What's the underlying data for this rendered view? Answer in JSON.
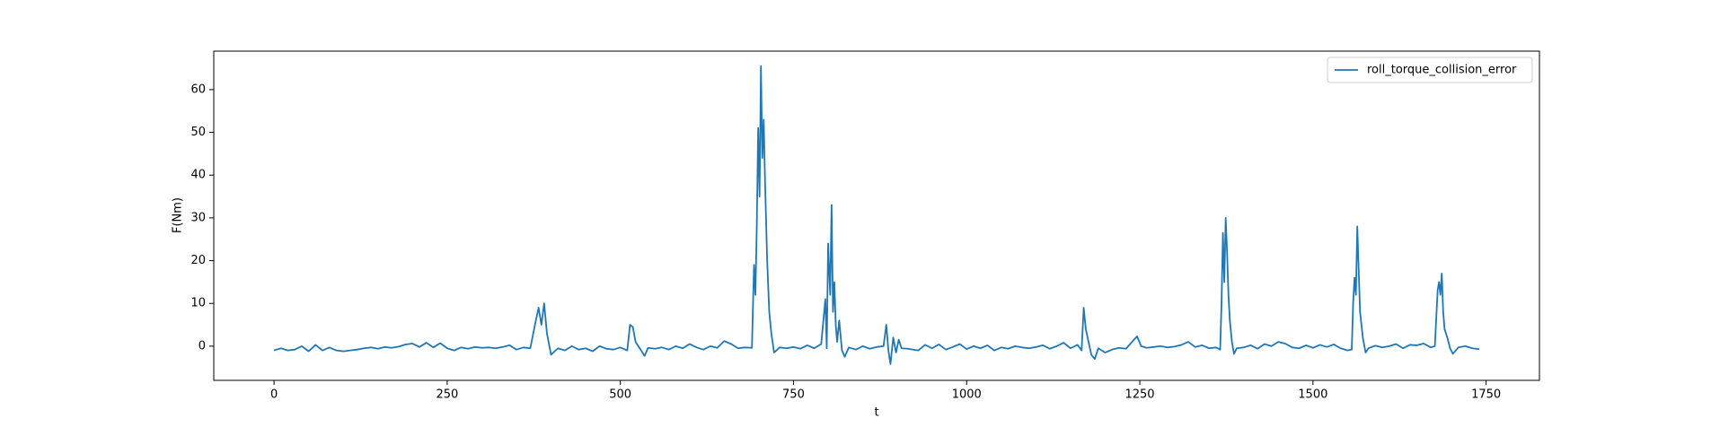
{
  "chart_data": {
    "type": "line",
    "xlabel": "t",
    "ylabel": "F(Nm)",
    "xlim": [
      -87,
      1827
    ],
    "xticks": [
      0,
      250,
      500,
      750,
      1000,
      1250,
      1500,
      1750
    ],
    "ylim": [
      -8,
      69
    ],
    "yticks": [
      0,
      10,
      20,
      30,
      40,
      50,
      60
    ],
    "legend": "upper right",
    "x": [
      0,
      10,
      20,
      30,
      40,
      50,
      60,
      70,
      80,
      90,
      100,
      110,
      120,
      130,
      140,
      150,
      160,
      170,
      180,
      190,
      200,
      210,
      220,
      230,
      240,
      250,
      260,
      270,
      280,
      290,
      300,
      310,
      320,
      330,
      340,
      350,
      360,
      370,
      378,
      382,
      386,
      390,
      394,
      400,
      410,
      420,
      430,
      440,
      450,
      460,
      470,
      480,
      490,
      500,
      510,
      514,
      518,
      522,
      530,
      535,
      540,
      550,
      560,
      570,
      580,
      590,
      600,
      610,
      620,
      630,
      640,
      650,
      660,
      670,
      680,
      690,
      693,
      695,
      697,
      699,
      701,
      703,
      705,
      707,
      709,
      712,
      715,
      718,
      722,
      730,
      740,
      750,
      760,
      770,
      780,
      790,
      796,
      798,
      800,
      803,
      805,
      807,
      809,
      811,
      813,
      816,
      820,
      824,
      830,
      840,
      850,
      860,
      870,
      880,
      884,
      887,
      890,
      894,
      898,
      902,
      906,
      915,
      930,
      940,
      950,
      960,
      970,
      980,
      990,
      1000,
      1010,
      1020,
      1030,
      1040,
      1050,
      1060,
      1070,
      1080,
      1090,
      1100,
      1110,
      1120,
      1130,
      1140,
      1150,
      1160,
      1166,
      1169,
      1172,
      1176,
      1180,
      1185,
      1190,
      1200,
      1210,
      1220,
      1230,
      1240,
      1246,
      1252,
      1260,
      1270,
      1280,
      1290,
      1300,
      1310,
      1320,
      1330,
      1340,
      1350,
      1360,
      1366,
      1368,
      1370,
      1372,
      1374,
      1376,
      1378,
      1380,
      1383,
      1386,
      1390,
      1400,
      1410,
      1420,
      1430,
      1440,
      1450,
      1460,
      1470,
      1480,
      1490,
      1500,
      1510,
      1520,
      1530,
      1540,
      1550,
      1556,
      1558,
      1560,
      1562,
      1564,
      1566,
      1568,
      1572,
      1576,
      1580,
      1590,
      1600,
      1610,
      1620,
      1630,
      1640,
      1650,
      1660,
      1670,
      1676,
      1680,
      1682,
      1684,
      1686,
      1688,
      1690,
      1694,
      1698,
      1702,
      1710,
      1720,
      1730,
      1740
    ],
    "series": [
      {
        "name": "roll_torque_collision_error",
        "color": "#1f77b4",
        "values": [
          -1,
          -0.5,
          -1,
          -0.8,
          0,
          -1.2,
          0.3,
          -1,
          -0.3,
          -1,
          -1.2,
          -1,
          -0.8,
          -0.5,
          -0.3,
          -0.6,
          -0.2,
          -0.4,
          -0.1,
          0.4,
          0.6,
          -0.2,
          0.8,
          -0.3,
          0.7,
          -0.5,
          -1,
          -0.3,
          -0.6,
          -0.2,
          -0.4,
          -0.3,
          -0.5,
          -0.2,
          0.2,
          -0.8,
          -0.3,
          -0.5,
          6,
          9,
          5,
          10,
          3,
          -2,
          -0.5,
          -1,
          0,
          -0.8,
          -0.5,
          -1.2,
          0,
          -0.6,
          -0.8,
          -0.3,
          -1,
          5,
          4.5,
          1,
          -1,
          -2.3,
          -0.4,
          -0.6,
          -0.3,
          -0.8,
          0,
          -0.5,
          0.5,
          -0.3,
          -0.8,
          0,
          -0.4,
          1.2,
          0.5,
          -0.5,
          -0.3,
          -0.4,
          19,
          12,
          28,
          51,
          35,
          65.5,
          44,
          53,
          38,
          20,
          8,
          3,
          -1.5,
          -0.3,
          -0.5,
          -0.2,
          -0.6,
          0.2,
          -0.5,
          0.5,
          11,
          -0.5,
          24,
          12,
          33,
          8,
          15,
          5,
          1,
          6,
          -1,
          -2.5,
          -0.3,
          -0.8,
          0,
          -0.6,
          -0.2,
          0,
          5,
          -1,
          -4.2,
          2,
          -1.5,
          1.5,
          -0.5,
          -0.6,
          -1,
          0.3,
          -0.5,
          0.4,
          -0.8,
          -0.2,
          0.5,
          -0.7,
          0,
          -0.5,
          0.2,
          -1,
          -0.3,
          -0.6,
          0,
          -0.3,
          -0.5,
          -0.2,
          0.2,
          -0.6,
          0,
          0.8,
          -0.5,
          0.3,
          -1,
          9,
          4,
          1,
          -2,
          -3,
          -0.5,
          -1.5,
          -0.8,
          -0.4,
          -0.6,
          1.2,
          2.3,
          0,
          -0.4,
          -0.2,
          0,
          -0.3,
          -0.1,
          0.3,
          1,
          -0.2,
          0.2,
          -0.5,
          -0.3,
          -0.8,
          10,
          26.5,
          15,
          30,
          22,
          12,
          6,
          1,
          -1.8,
          -0.5,
          -0.3,
          0.2,
          -0.6,
          0.5,
          0,
          1,
          0.6,
          -0.3,
          -0.5,
          0.2,
          -0.4,
          0.3,
          -0.2,
          0.4,
          -0.5,
          -1,
          -0.8,
          10,
          16,
          12,
          28,
          18,
          8,
          2,
          -1.5,
          -0.5,
          0.1,
          -0.3,
          0,
          0.5,
          -0.5,
          0.3,
          0.2,
          0.6,
          -0.3,
          0,
          13,
          15,
          12,
          17,
          8,
          4,
          2,
          -0.5,
          -1.8,
          -0.3,
          0,
          -0.5,
          -0.7
        ]
      }
    ]
  }
}
